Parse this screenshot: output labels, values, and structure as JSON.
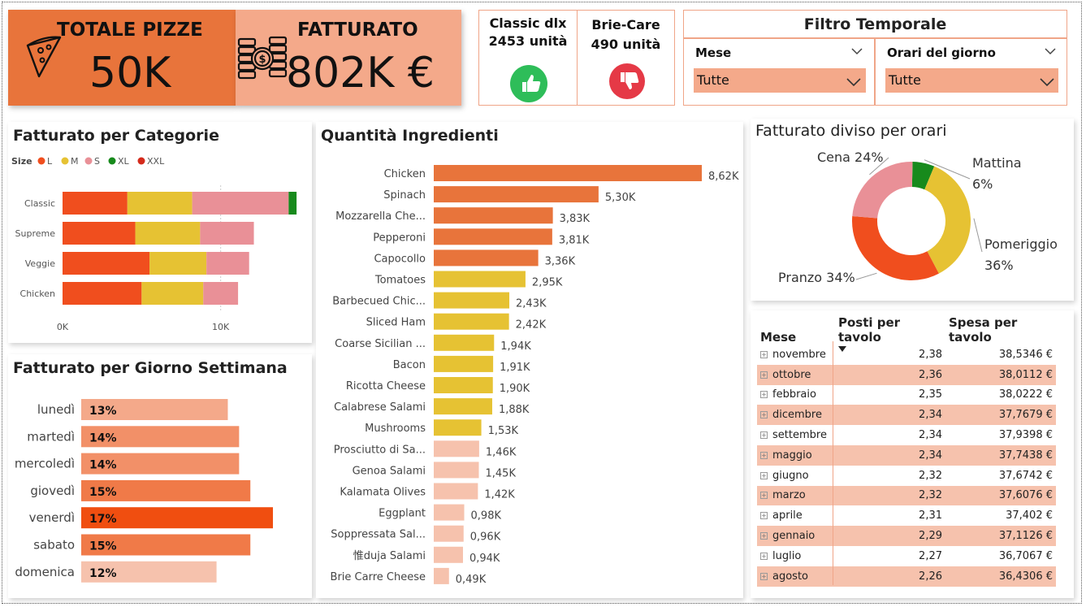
{
  "kpi": {
    "totale_pizze_label": "TOTALE PIZZE",
    "totale_pizze_value": "50K",
    "fatturato_label": "FATTURATO",
    "fatturato_value": "802K €",
    "left_color": "#e8743b",
    "right_color": "#f4a98a"
  },
  "best": {
    "name": "Classic dlx",
    "units": "2453 unità",
    "icon": "thumbs-up-icon",
    "color": "#2ebd59"
  },
  "worst": {
    "name": "Brie-Care",
    "units": "490 unità",
    "icon": "thumbs-down-icon",
    "color": "#e53946"
  },
  "filtro": {
    "title": "Filtro Temporale",
    "mese_label": "Mese",
    "mese_value": "Tutte",
    "orari_label": "Orari del giorno",
    "orari_value": "Tutte"
  },
  "categorie": {
    "title": "Fatturato per Categorie",
    "legend_title": "Size",
    "chart_data": {
      "type": "bar",
      "orientation": "horizontal-stacked",
      "categories": [
        "Classic",
        "Supreme",
        "Veggie",
        "Chicken"
      ],
      "series": [
        {
          "name": "L",
          "color": "#f04e1e",
          "values": [
            4100,
            4600,
            5500,
            5000
          ]
        },
        {
          "name": "M",
          "color": "#e6c233",
          "values": [
            4100,
            4100,
            3600,
            3900
          ]
        },
        {
          "name": "S",
          "color": "#e99097",
          "values": [
            6100,
            3400,
            2700,
            2200
          ]
        },
        {
          "name": "XL",
          "color": "#178a1c",
          "values": [
            500,
            0,
            0,
            0
          ]
        },
        {
          "name": "XXL",
          "color": "#d42a1b",
          "values": [
            0,
            0,
            0,
            0
          ]
        }
      ],
      "x_ticks": [
        "0K",
        "10K"
      ],
      "xlim": [
        0,
        15000
      ]
    }
  },
  "giorni": {
    "title": "Fatturato per Giorno Settimana",
    "chart_data": {
      "type": "bar",
      "orientation": "horizontal",
      "categories": [
        "lunedì",
        "martedì",
        "mercoledì",
        "giovedì",
        "venerdì",
        "sabato",
        "domenica"
      ],
      "values": [
        13,
        14,
        14,
        15,
        17,
        15,
        12
      ],
      "labels": [
        "13%",
        "14%",
        "14%",
        "15%",
        "17%",
        "15%",
        "12%"
      ],
      "colors": [
        "#f4a98a",
        "#f29068",
        "#f29068",
        "#f07a48",
        "#f04e10",
        "#f07a48",
        "#f6c2ad"
      ]
    }
  },
  "ingredienti": {
    "title": "Quantità Ingredienti",
    "chart_data": {
      "type": "bar",
      "orientation": "horizontal",
      "categories": [
        "Chicken",
        "Spinach",
        "Mozzarella Che...",
        "Pepperoni",
        "Capocollo",
        "Tomatoes",
        "Barbecued Chic...",
        "Sliced Ham",
        "Coarse Sicilian ...",
        "Bacon",
        "Ricotta Cheese",
        "Calabrese Salami",
        "Mushrooms",
        "Prosciutto di Sa...",
        "Genoa Salami",
        "Kalamata Olives",
        "Eggplant",
        "Soppressata Sal...",
        "惟duja Salami",
        "Brie Carre Cheese"
      ],
      "values": [
        8620,
        5300,
        3830,
        3810,
        3360,
        2950,
        2430,
        2420,
        1940,
        1910,
        1900,
        1880,
        1530,
        1460,
        1450,
        1420,
        980,
        960,
        940,
        490
      ],
      "labels": [
        "8,62K",
        "5,30K",
        "3,83K",
        "3,81K",
        "3,36K",
        "2,95K",
        "2,43K",
        "2,42K",
        "1,94K",
        "1,91K",
        "1,90K",
        "1,88K",
        "1,53K",
        "1,46K",
        "1,45K",
        "1,42K",
        "0,98K",
        "0,96K",
        "0,94K",
        "0,49K"
      ],
      "color_groups": {
        "high": "#e8743b",
        "mid": "#e6c233",
        "low": "#f6c2ad"
      },
      "groups": [
        "high",
        "high",
        "high",
        "high",
        "high",
        "mid",
        "mid",
        "mid",
        "mid",
        "mid",
        "mid",
        "mid",
        "mid",
        "low",
        "low",
        "low",
        "low",
        "low",
        "low",
        "low"
      ]
    }
  },
  "orari": {
    "title": "Fatturato diviso per orari",
    "chart_data": {
      "type": "pie",
      "style": "donut",
      "slices": [
        {
          "name": "Mattina",
          "value": 6,
          "label": "6%",
          "color": "#178a1c"
        },
        {
          "name": "Pomeriggio",
          "value": 36,
          "label": "36%",
          "color": "#e6c233"
        },
        {
          "name": "Pranzo",
          "value": 34,
          "label": "34%",
          "color": "#f04e1e"
        },
        {
          "name": "Cena",
          "value": 24,
          "label": "24%",
          "color": "#e99097"
        }
      ]
    }
  },
  "tabella": {
    "headers": [
      "Mese",
      "Posti per tavolo",
      "Spesa per tavolo"
    ],
    "rows": [
      {
        "mese": "novembre",
        "posti": "2,38",
        "spesa": "38,5346 €"
      },
      {
        "mese": "ottobre",
        "posti": "2,36",
        "spesa": "38,0112 €"
      },
      {
        "mese": "febbraio",
        "posti": "2,35",
        "spesa": "38,0222 €"
      },
      {
        "mese": "dicembre",
        "posti": "2,34",
        "spesa": "37,7679 €"
      },
      {
        "mese": "settembre",
        "posti": "2,34",
        "spesa": "37,9398 €"
      },
      {
        "mese": "maggio",
        "posti": "2,34",
        "spesa": "37,7438 €"
      },
      {
        "mese": "giugno",
        "posti": "2,32",
        "spesa": "37,6742 €"
      },
      {
        "mese": "marzo",
        "posti": "2,32",
        "spesa": "37,6076 €"
      },
      {
        "mese": "aprile",
        "posti": "2,31",
        "spesa": "37,402 €"
      },
      {
        "mese": "gennaio",
        "posti": "2,29",
        "spesa": "37,1126 €"
      },
      {
        "mese": "luglio",
        "posti": "2,27",
        "spesa": "36,7067 €"
      },
      {
        "mese": "agosto",
        "posti": "2,26",
        "spesa": "36,4306 €"
      }
    ]
  }
}
